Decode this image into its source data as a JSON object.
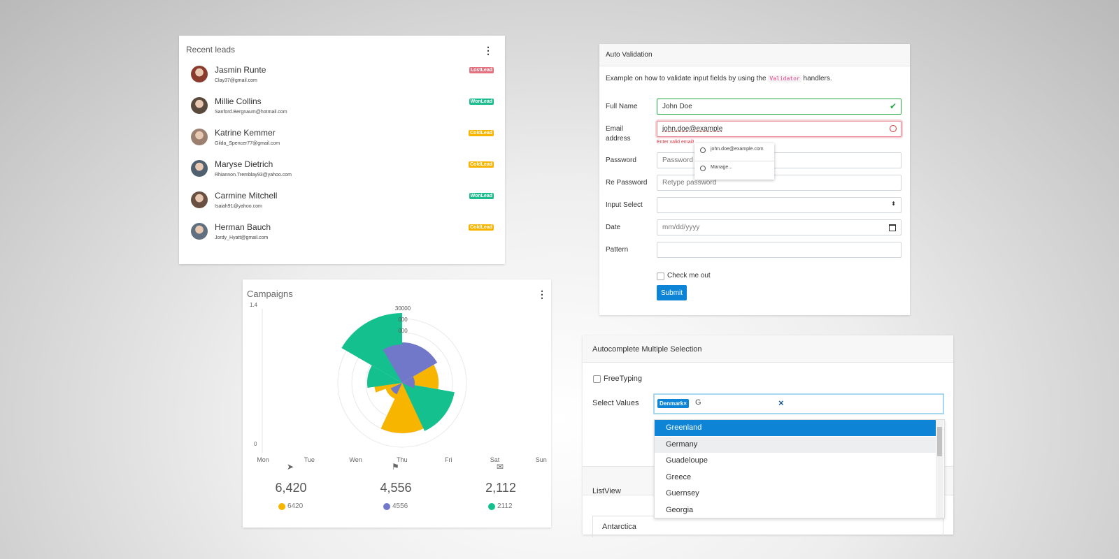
{
  "recent_leads": {
    "title": "Recent leads",
    "leads": [
      {
        "name": "Jasmin Runte",
        "email": "Clay37@gmail.com",
        "status": "LostLead",
        "color": "#e3717f"
      },
      {
        "name": "Millie Collins",
        "email": "Sanford.Bergnaum@hotmail.com",
        "status": "WonLead",
        "color": "#1bbc8d"
      },
      {
        "name": "Katrine Kemmer",
        "email": "Gilda_Spencer77@gmail.com",
        "status": "ColdLead",
        "color": "#f7b500"
      },
      {
        "name": "Maryse Dietrich",
        "email": "Rhiannon.Tremblay93@yahoo.com",
        "status": "ColdLead",
        "color": "#f7b500"
      },
      {
        "name": "Carmine Mitchell",
        "email": "Isaiah91@yahoo.com",
        "status": "WonLead",
        "color": "#1bbc8d"
      },
      {
        "name": "Herman Bauch",
        "email": "Jordy_Hyatt@gmail.com",
        "status": "ColdLead",
        "color": "#f7b500"
      }
    ]
  },
  "auto_validation": {
    "title": "Auto Validation",
    "description": [
      "Example on how to validate input fields by using the",
      "Validator",
      "handlers."
    ],
    "fields": [
      {
        "label": "Full Name",
        "value": "John Doe"
      },
      {
        "label": "Email address",
        "value": "john.doe@example",
        "error": "Enter valid email!"
      },
      {
        "label": "Password",
        "placeholder": "Password"
      },
      {
        "label": "Re Password",
        "placeholder": "Retype password"
      },
      {
        "label": "Input Select"
      },
      {
        "label": "Date",
        "placeholder": "mm/dd/yyyy"
      },
      {
        "label": "Pattern"
      }
    ],
    "suggestions": [
      "john.doe@example.com",
      "Manage..."
    ],
    "checkbox": "Check me out",
    "submit": "Submit"
  },
  "campaigns": {
    "title": "Campaigns",
    "y_labels": [
      "1.4",
      "0"
    ],
    "days": [
      "Mon",
      "Tue",
      "Wen",
      "Thu",
      "Fri",
      "Sat",
      "Sun"
    ],
    "radial_labels": [
      "30000",
      "000",
      "000"
    ],
    "stats": [
      {
        "value": "6,420",
        "legend": "6420",
        "color": "#f7b500"
      },
      {
        "value": "4,556",
        "legend": "4556",
        "color": "#7178c9"
      },
      {
        "value": "2,112",
        "legend": "2112",
        "color": "#15c08f"
      }
    ]
  },
  "autocomplete": {
    "title": "Autocomplete Multiple Selection",
    "checkbox": "FreeTyping",
    "label": "Select Values",
    "chip": "Denmark×",
    "query": "G",
    "clear": "×",
    "options": [
      "Greenland",
      "Germany",
      "Guadeloupe",
      "Greece",
      "Guernsey",
      "Georgia"
    ],
    "listview_title": "ListView",
    "listview_item": "Antarctica"
  }
}
